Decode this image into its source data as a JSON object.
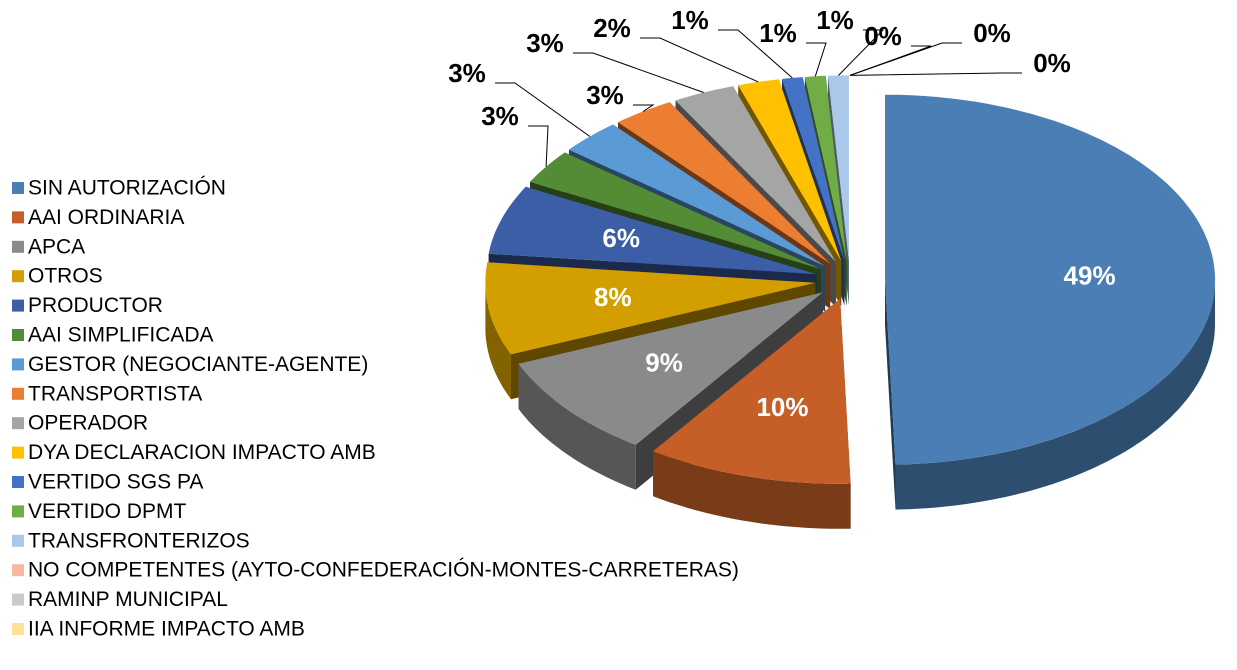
{
  "chart_data": {
    "type": "pie",
    "categories": [
      "SIN AUTORIZACIÓN",
      "AAI ORDINARIA",
      "APCA",
      "OTROS",
      "PRODUCTOR",
      "AAI SIMPLIFICADA",
      "GESTOR (NEGOCIANTE-AGENTE)",
      "TRANSPORTISTA",
      "OPERADOR",
      "DYA DECLARACION IMPACTO AMB",
      "VERTIDO SGS PA",
      "VERTIDO DPMT",
      "TRANSFRONTERIZOS",
      "NO COMPETENTES (AYTO-CONFEDERACIÓN-MONTES-CARRETERAS)",
      "RAMINP MUNICIPAL",
      "IIA INFORME IMPACTO AMB"
    ],
    "values": [
      49,
      10,
      9,
      8,
      6,
      3,
      3,
      3,
      3,
      2,
      1,
      1,
      1,
      0,
      0,
      0
    ],
    "value_labels": [
      "49%",
      "10%",
      "9%",
      "8%",
      "6%",
      "3%",
      "3%",
      "3%",
      "3%",
      "2%",
      "1%",
      "1%",
      "1%",
      "0%",
      "0%",
      "0%"
    ],
    "colors": [
      "#4a7eb4",
      "#c55f27",
      "#8a8a8a",
      "#d39e00",
      "#3b5ea7",
      "#548c36",
      "#5b9bd5",
      "#ed7d31",
      "#a5a5a5",
      "#ffc000",
      "#4472c4",
      "#70ad47",
      "#a9c8ea",
      "#f4b9a0",
      "#c9c9c9",
      "#ffe29a"
    ],
    "legend": "left"
  }
}
